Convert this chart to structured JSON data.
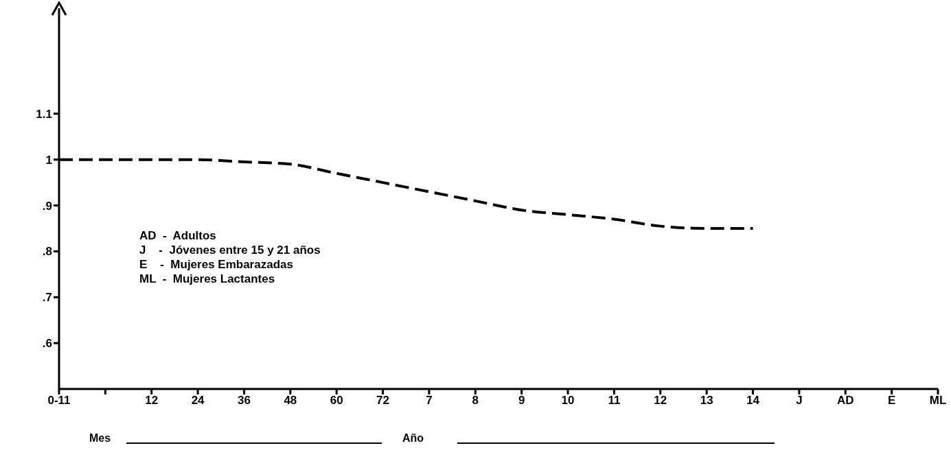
{
  "chart_data": {
    "type": "line",
    "categories": [
      "0-11",
      null,
      "12",
      "24",
      "36",
      "48",
      "60",
      "72",
      "7",
      "8",
      "9",
      "10",
      "11",
      "12",
      "13",
      "14",
      "J",
      "AD",
      "E",
      "ML"
    ],
    "series": [
      {
        "color": "#000000",
        "values": [
          1.0,
          1.0,
          1.0,
          1.0,
          0.995,
          0.99,
          0.97,
          0.95,
          0.93,
          0.91,
          0.89,
          0.88,
          0.87,
          0.855,
          0.85,
          0.85,
          null,
          null,
          null,
          null
        ]
      }
    ],
    "ylim": [
      0.5,
      1.33
    ],
    "yticks": [
      {
        "value": 0.6,
        "label": ".6"
      },
      {
        "value": 0.7,
        "label": ".7"
      },
      {
        "value": 0.8,
        "label": ".8"
      },
      {
        "value": 0.9,
        "label": ".9"
      },
      1,
      1.1
    ],
    "grid": false,
    "legend": false,
    "marker": "none",
    "line_style": "dashed",
    "annotations": [
      "AD  -  Adultos",
      "J    -  Jóvenes entre 15 y 21 años",
      "E    -  Mujeres Embarazadas",
      "ML  -  Mujeres Lactantes",
      "Mes",
      "Año"
    ]
  }
}
